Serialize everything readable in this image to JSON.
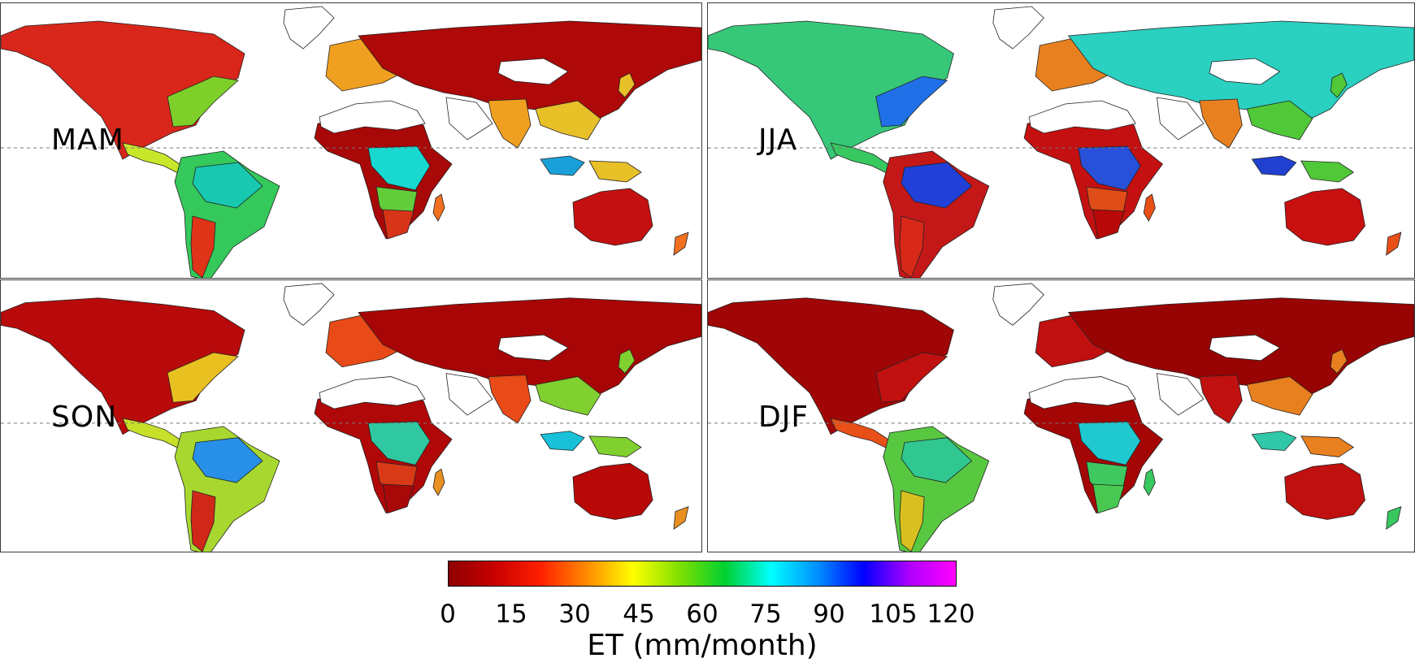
{
  "panels": [
    {
      "id": "mam",
      "label": "MAM",
      "fills": {
        "na": "#d8261a",
        "nae": "#7ecf2a",
        "ca": "#c8e62a",
        "sa": "#35c85a",
        "saa": "#18c8b0",
        "sas": "#e03418",
        "af": "#a80808",
        "afc": "#18d8d0",
        "afs": "#62cc3a",
        "afss": "#d83418",
        "eu": "#ae0808",
        "eus": "#f0a020",
        "sea": "#e8c028",
        "ind": "#1aa0d8",
        "aus": "#c41010",
        "mad": "#f07020"
      }
    },
    {
      "id": "jja",
      "label": "JJA",
      "fills": {
        "na": "#36c878",
        "nae": "#2070e8",
        "ca": "#38c860",
        "sa": "#c41818",
        "saa": "#2040d8",
        "sas": "#d82818",
        "af": "#c41010",
        "afc": "#2850d8",
        "afs": "#e04c18",
        "afss": "#b80808",
        "eu": "#2ad0c0",
        "eus": "#e88020",
        "sea": "#50c838",
        "ind": "#2040d0",
        "aus": "#c81010",
        "mad": "#e85018"
      }
    },
    {
      "id": "son",
      "label": "SON",
      "fills": {
        "na": "#b80a0a",
        "nae": "#e8c020",
        "ca": "#c8e02a",
        "sa": "#a8d830",
        "saa": "#2890e8",
        "sas": "#d02818",
        "af": "#b00808",
        "afc": "#30c8a0",
        "afs": "#d83a18",
        "afss": "#a80808",
        "eu": "#a80606",
        "eus": "#e84a18",
        "sea": "#80d030",
        "ind": "#18c0d8",
        "aus": "#b80808",
        "mad": "#e89020"
      }
    },
    {
      "id": "djf",
      "label": "DJF",
      "fills": {
        "na": "#a00606",
        "nae": "#c01010",
        "ca": "#e85018",
        "sa": "#58c840",
        "saa": "#30c890",
        "sas": "#d8c020",
        "af": "#a40606",
        "afc": "#20c8d0",
        "afs": "#40c860",
        "afss": "#48c850",
        "eu": "#980404",
        "eus": "#c01010",
        "sea": "#e88020",
        "ind": "#30c8a8",
        "aus": "#c01010",
        "mad": "#38c860"
      }
    }
  ],
  "colorbar": {
    "ticks": [
      "0",
      "15",
      "30",
      "45",
      "60",
      "75",
      "90",
      "105",
      "120"
    ],
    "label": "ET (mm/month)",
    "colors": [
      "#8e0000",
      "#c80000",
      "#ff2000",
      "#ff8c00",
      "#ffff00",
      "#80e000",
      "#00d030",
      "#00ffff",
      "#0090ff",
      "#0000ff",
      "#b000ff",
      "#ff00ff"
    ]
  }
}
